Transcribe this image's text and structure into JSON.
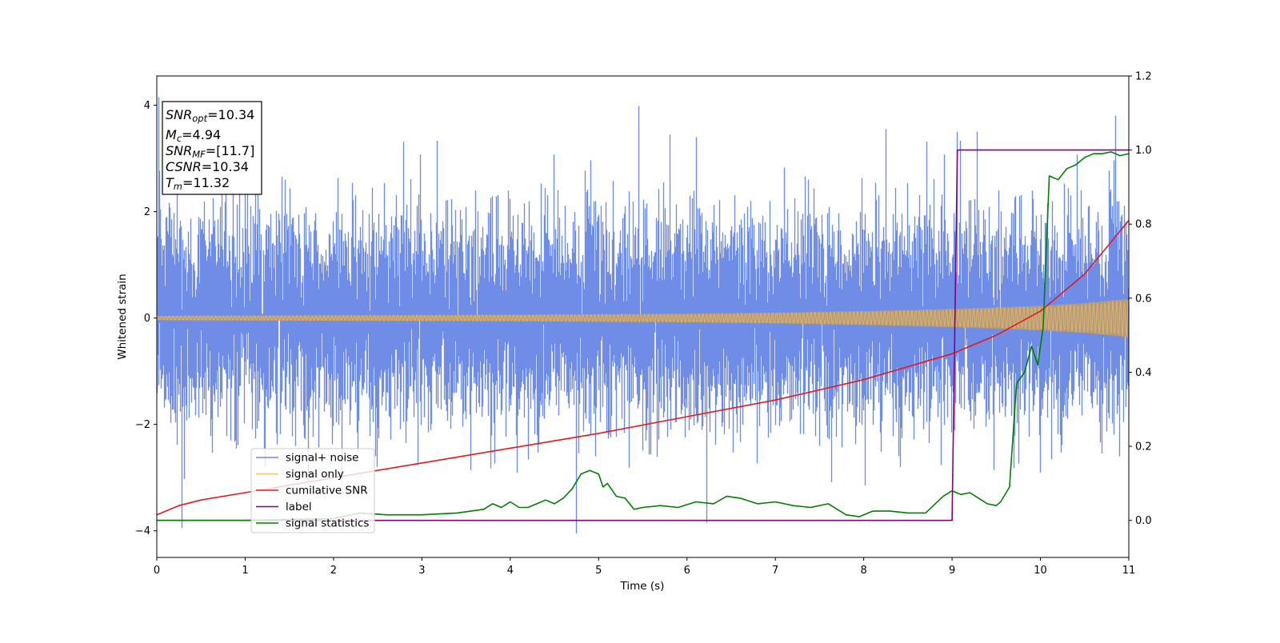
{
  "chart_data": {
    "type": "line",
    "xlabel": "Time (s)",
    "ylabel": "Whitened strain",
    "xlim": [
      0,
      11
    ],
    "ylim": [
      -4.5,
      4.55
    ],
    "y2lim": [
      -0.1,
      1.2
    ],
    "x_ticks": [
      0,
      1,
      2,
      3,
      4,
      5,
      6,
      7,
      8,
      9,
      10,
      11
    ],
    "y_ticks": [
      -4,
      -2,
      0,
      2,
      4
    ],
    "y2_ticks": [
      "0.0",
      "0.2",
      "0.4",
      "0.6",
      "0.8",
      "1.0",
      "1.2"
    ],
    "grid": false,
    "legend_position": "lower-left",
    "annotation": [
      {
        "base": "SNR",
        "sub": "opt",
        "value": "=10.34"
      },
      {
        "base": "M",
        "sub": "c",
        "value": "=4.94"
      },
      {
        "base": "SNR",
        "sub": "MF",
        "value": "=[11.7]"
      },
      {
        "base": "CSNR",
        "sub": "",
        "value": "=10.34"
      },
      {
        "base": "T",
        "sub": "m",
        "value": "=11.32"
      }
    ],
    "series": [
      {
        "name": "signal+ noise",
        "axis": "left",
        "color": "#6f8ce6",
        "style": "noise",
        "noise_sigma": 1.0,
        "peaks": [
          [
            0.02,
            4.15
          ],
          [
            0.28,
            -3.95
          ],
          [
            4.74,
            -4.05
          ],
          [
            6.22,
            -3.85
          ],
          [
            8.25,
            3.55
          ],
          [
            9.05,
            3.5
          ],
          [
            10.85,
            3.8
          ],
          [
            9.28,
            3.5
          ],
          [
            6.1,
            3.4
          ],
          [
            5.8,
            3.45
          ]
        ]
      },
      {
        "name": "signal only",
        "axis": "left",
        "color": "#f5c46e",
        "style": "envelope",
        "x": [
          0,
          2,
          4,
          6,
          7,
          8,
          9,
          10,
          10.5,
          11
        ],
        "amplitude": [
          0.04,
          0.05,
          0.06,
          0.08,
          0.1,
          0.13,
          0.17,
          0.23,
          0.28,
          0.36
        ]
      },
      {
        "name": "cumilative SNR",
        "axis": "right",
        "color": "#e41a1c",
        "x": [
          0,
          0.25,
          0.5,
          1,
          1.5,
          2,
          3,
          4,
          5,
          6,
          7,
          8,
          9,
          9.5,
          10,
          10.5,
          11
        ],
        "y": [
          0.015,
          0.04,
          0.055,
          0.075,
          0.095,
          0.115,
          0.155,
          0.195,
          0.235,
          0.28,
          0.325,
          0.38,
          0.45,
          0.5,
          0.565,
          0.665,
          0.81
        ]
      },
      {
        "name": "label",
        "axis": "right",
        "color": "#800080",
        "x": [
          0,
          9.0,
          9.06,
          11
        ],
        "y": [
          0.0,
          0.0,
          1.0,
          1.0
        ]
      },
      {
        "name": "signal statistics",
        "axis": "right",
        "color": "#008000",
        "x": [
          0,
          1.0,
          2.0,
          2.3,
          2.6,
          3.0,
          3.4,
          3.7,
          3.8,
          3.9,
          4.0,
          4.1,
          4.2,
          4.3,
          4.4,
          4.5,
          4.6,
          4.7,
          4.8,
          4.9,
          5.0,
          5.05,
          5.1,
          5.2,
          5.3,
          5.4,
          5.5,
          5.7,
          5.9,
          6.1,
          6.3,
          6.45,
          6.6,
          6.8,
          7.0,
          7.2,
          7.4,
          7.6,
          7.8,
          7.95,
          8.1,
          8.3,
          8.5,
          8.7,
          8.9,
          9.0,
          9.1,
          9.2,
          9.3,
          9.4,
          9.5,
          9.55,
          9.65,
          9.73,
          9.82,
          9.9,
          9.97,
          10.03,
          10.1,
          10.2,
          10.3,
          10.4,
          10.5,
          10.6,
          10.7,
          10.8,
          10.9,
          11.0
        ],
        "y": [
          0.0,
          0.0,
          0.005,
          0.02,
          0.015,
          0.015,
          0.02,
          0.03,
          0.045,
          0.035,
          0.05,
          0.035,
          0.035,
          0.045,
          0.055,
          0.045,
          0.06,
          0.085,
          0.125,
          0.135,
          0.125,
          0.09,
          0.1,
          0.065,
          0.06,
          0.03,
          0.035,
          0.04,
          0.035,
          0.05,
          0.045,
          0.065,
          0.06,
          0.045,
          0.05,
          0.04,
          0.035,
          0.045,
          0.015,
          0.01,
          0.025,
          0.025,
          0.02,
          0.02,
          0.065,
          0.08,
          0.07,
          0.075,
          0.06,
          0.045,
          0.04,
          0.05,
          0.09,
          0.37,
          0.4,
          0.47,
          0.42,
          0.52,
          0.93,
          0.92,
          0.95,
          0.96,
          0.98,
          0.99,
          0.99,
          0.995,
          0.985,
          0.99
        ]
      }
    ]
  }
}
